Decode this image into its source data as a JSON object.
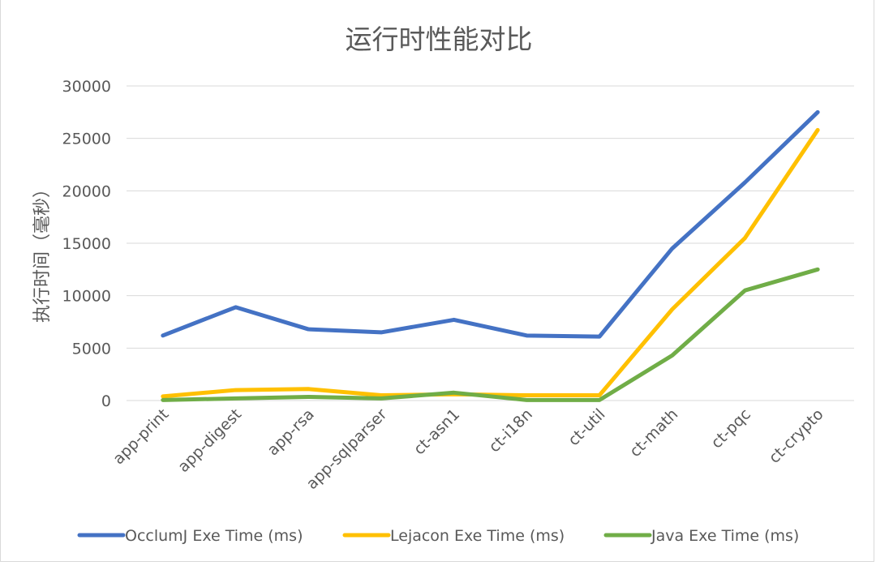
{
  "chart_data": {
    "type": "line",
    "title": "运行时性能对比",
    "xlabel": "",
    "ylabel": "执行时间（毫秒）",
    "ylim": [
      0,
      30000
    ],
    "yticks": [
      0,
      5000,
      10000,
      15000,
      20000,
      25000,
      30000
    ],
    "grid": true,
    "legend_position": "bottom",
    "categories": [
      "app-print",
      "app-digest",
      "app-rsa",
      "app-sqlparser",
      "ct-asn1",
      "ct-i18n",
      "ct-util",
      "ct-math",
      "ct-pqc",
      "ct-crypto"
    ],
    "series": [
      {
        "name": "OcclumJ Exe Time (ms)",
        "color": "#4472c4",
        "values": [
          6200,
          8900,
          6800,
          6500,
          7700,
          6200,
          6100,
          14500,
          20800,
          27500
        ]
      },
      {
        "name": "Lejacon Exe Time (ms)",
        "color": "#ffc000",
        "values": [
          400,
          1000,
          1100,
          500,
          600,
          500,
          500,
          8700,
          15500,
          25800
        ]
      },
      {
        "name": "Java Exe Time (ms)",
        "color": "#70ad47",
        "values": [
          50,
          200,
          350,
          200,
          750,
          50,
          50,
          4300,
          10500,
          12500
        ]
      }
    ]
  }
}
